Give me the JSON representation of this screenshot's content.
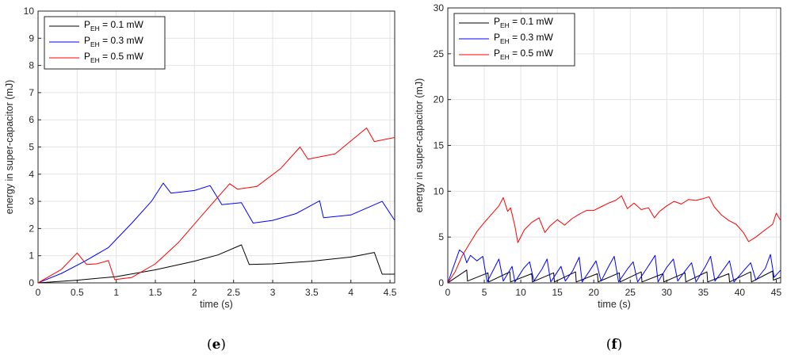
{
  "chart_data": [
    {
      "type": "line",
      "caption": "(e)",
      "xlabel": "time (s)",
      "ylabel": "energy in super-capacitor (mJ)",
      "xlim": [
        0,
        4.56
      ],
      "ylim": [
        0,
        10
      ],
      "xticks": [
        0,
        0.5,
        1,
        1.5,
        2,
        2.5,
        3,
        3.5,
        4,
        4.5
      ],
      "xtick_labels": [
        "0",
        "0.5",
        "1",
        "1.5",
        "2",
        "2.5",
        "3",
        "3.5",
        "4",
        "4.5"
      ],
      "yticks": [
        0,
        1,
        2,
        3,
        4,
        5,
        6,
        7,
        8,
        9,
        10
      ],
      "ytick_labels": [
        "0",
        "1",
        "2",
        "3",
        "4",
        "5",
        "6",
        "7",
        "8",
        "9",
        "10"
      ],
      "grid": true,
      "legend_position": "top-left",
      "series": [
        {
          "name_prefix": "P",
          "name_sub": "EH",
          "name_suffix": " = 0.1 mW",
          "color": "#000000",
          "points": [
            [
              0,
              0
            ],
            [
              0.5,
              0.1
            ],
            [
              1,
              0.23
            ],
            [
              1.5,
              0.48
            ],
            [
              2,
              0.8
            ],
            [
              2.3,
              1.03
            ],
            [
              2.6,
              1.4
            ],
            [
              2.7,
              0.68
            ],
            [
              3,
              0.7
            ],
            [
              3.5,
              0.8
            ],
            [
              4,
              0.95
            ],
            [
              4.3,
              1.12
            ],
            [
              4.4,
              0.32
            ],
            [
              4.56,
              0.32
            ]
          ]
        },
        {
          "name_prefix": "P",
          "name_sub": "EH",
          "name_suffix": " = 0.3 mW",
          "color": "#0000ff",
          "points": [
            [
              0,
              0
            ],
            [
              0.3,
              0.35
            ],
            [
              0.6,
              0.8
            ],
            [
              0.9,
              1.3
            ],
            [
              1.2,
              2.2
            ],
            [
              1.45,
              3.0
            ],
            [
              1.6,
              3.67
            ],
            [
              1.7,
              3.3
            ],
            [
              2,
              3.4
            ],
            [
              2.2,
              3.58
            ],
            [
              2.35,
              2.88
            ],
            [
              2.6,
              2.95
            ],
            [
              2.75,
              2.2
            ],
            [
              3,
              2.3
            ],
            [
              3.3,
              2.55
            ],
            [
              3.6,
              3.02
            ],
            [
              3.65,
              2.4
            ],
            [
              4,
              2.5
            ],
            [
              4.4,
              3.0
            ],
            [
              4.56,
              2.3
            ]
          ]
        },
        {
          "name_prefix": "P",
          "name_sub": "EH",
          "name_suffix": " = 0.5 mW",
          "color": "#ff0000",
          "points": [
            [
              0,
              0
            ],
            [
              0.3,
              0.5
            ],
            [
              0.5,
              1.1
            ],
            [
              0.62,
              0.68
            ],
            [
              0.75,
              0.7
            ],
            [
              0.9,
              0.82
            ],
            [
              0.98,
              0.12
            ],
            [
              1.2,
              0.2
            ],
            [
              1.5,
              0.7
            ],
            [
              1.8,
              1.5
            ],
            [
              2.1,
              2.5
            ],
            [
              2.45,
              3.65
            ],
            [
              2.55,
              3.45
            ],
            [
              2.8,
              3.55
            ],
            [
              3.1,
              4.2
            ],
            [
              3.35,
              5.0
            ],
            [
              3.45,
              4.55
            ],
            [
              3.8,
              4.75
            ],
            [
              4.2,
              5.7
            ],
            [
              4.3,
              5.2
            ],
            [
              4.56,
              5.35
            ]
          ]
        }
      ]
    },
    {
      "type": "line",
      "caption": "(f)",
      "xlabel": "time (s)",
      "ylabel": "energy in super-capacitor (mJ)",
      "xlim": [
        0,
        45.6
      ],
      "ylim": [
        0,
        30
      ],
      "xticks": [
        0,
        5,
        10,
        15,
        20,
        25,
        30,
        35,
        40,
        45
      ],
      "xtick_labels": [
        "0",
        "5",
        "10",
        "15",
        "20",
        "25",
        "30",
        "35",
        "40",
        "45"
      ],
      "yticks": [
        0,
        5,
        10,
        15,
        20,
        25,
        30
      ],
      "ytick_labels": [
        "0",
        "5",
        "10",
        "15",
        "20",
        "25",
        "30"
      ],
      "grid": true,
      "legend_position": "top-left",
      "series": [
        {
          "name_prefix": "P",
          "name_sub": "EH",
          "name_suffix": " = 0.1 mW",
          "color": "#000000",
          "points": [
            [
              0,
              0
            ],
            [
              2.6,
              1.4
            ],
            [
              2.7,
              0.2
            ],
            [
              5.5,
              1.1
            ],
            [
              5.6,
              0.1
            ],
            [
              8.5,
              1.2
            ],
            [
              8.6,
              0.1
            ],
            [
              11.5,
              1.0
            ],
            [
              11.6,
              0.1
            ],
            [
              14.5,
              1.1
            ],
            [
              14.6,
              0.1
            ],
            [
              17.5,
              1.2
            ],
            [
              17.6,
              0.1
            ],
            [
              20.5,
              1.0
            ],
            [
              20.6,
              0.1
            ],
            [
              23.5,
              1.1
            ],
            [
              23.6,
              0.1
            ],
            [
              26.5,
              1.2
            ],
            [
              26.6,
              0.1
            ],
            [
              29.5,
              1.0
            ],
            [
              29.6,
              0.1
            ],
            [
              32.5,
              1.1
            ],
            [
              32.6,
              0.1
            ],
            [
              35.5,
              1.2
            ],
            [
              35.6,
              0.1
            ],
            [
              38.5,
              1.0
            ],
            [
              38.6,
              0.1
            ],
            [
              41.5,
              1.2
            ],
            [
              41.6,
              0.1
            ],
            [
              44.5,
              1.3
            ],
            [
              44.6,
              0.3
            ],
            [
              45.6,
              0.6
            ]
          ]
        },
        {
          "name_prefix": "P",
          "name_sub": "EH",
          "name_suffix": " = 0.3 mW",
          "color": "#0000ff",
          "points": [
            [
              0,
              0
            ],
            [
              1.6,
              3.6
            ],
            [
              2.2,
              3.2
            ],
            [
              2.6,
              2.2
            ],
            [
              3.1,
              3.0
            ],
            [
              4.0,
              2.4
            ],
            [
              4.8,
              2.9
            ],
            [
              5.4,
              0.1
            ],
            [
              6.3,
              1.5
            ],
            [
              7.0,
              2.6
            ],
            [
              7.6,
              0.2
            ],
            [
              8.8,
              1.8
            ],
            [
              9.2,
              0.1
            ],
            [
              10.4,
              1.6
            ],
            [
              11.2,
              2.3
            ],
            [
              11.8,
              0.2
            ],
            [
              12.9,
              1.5
            ],
            [
              13.6,
              2.6
            ],
            [
              14.1,
              0.1
            ],
            [
              15.5,
              1.8
            ],
            [
              16.1,
              0.2
            ],
            [
              17.1,
              1.3
            ],
            [
              18.0,
              2.8
            ],
            [
              18.4,
              0.1
            ],
            [
              19.5,
              1.4
            ],
            [
              20.3,
              2.4
            ],
            [
              21.0,
              0.2
            ],
            [
              22.1,
              1.9
            ],
            [
              22.8,
              2.9
            ],
            [
              23.4,
              0.1
            ],
            [
              24.6,
              1.5
            ],
            [
              25.4,
              2.3
            ],
            [
              26.0,
              0.1
            ],
            [
              27.2,
              1.5
            ],
            [
              28.4,
              3.0
            ],
            [
              28.8,
              0.1
            ],
            [
              30.0,
              1.7
            ],
            [
              30.9,
              2.6
            ],
            [
              31.5,
              0.2
            ],
            [
              32.6,
              1.4
            ],
            [
              33.4,
              2.2
            ],
            [
              34.0,
              0.1
            ],
            [
              35.3,
              1.8
            ],
            [
              36.0,
              2.9
            ],
            [
              36.6,
              0.2
            ],
            [
              37.8,
              1.5
            ],
            [
              38.6,
              2.4
            ],
            [
              39.2,
              0.1
            ],
            [
              40.4,
              1.2
            ],
            [
              41.5,
              2.2
            ],
            [
              42.2,
              0.3
            ],
            [
              43.5,
              1.6
            ],
            [
              44.2,
              3.1
            ],
            [
              44.7,
              0.6
            ],
            [
              45.6,
              1.4
            ]
          ]
        },
        {
          "name_prefix": "P",
          "name_sub": "EH",
          "name_suffix": " = 0.5 mW",
          "color": "#ff0000",
          "points": [
            [
              0,
              0
            ],
            [
              1.0,
              1.2
            ],
            [
              2.0,
              3.0
            ],
            [
              3.0,
              4.3
            ],
            [
              4.0,
              5.6
            ],
            [
              5.0,
              6.6
            ],
            [
              6.0,
              7.5
            ],
            [
              7.0,
              8.4
            ],
            [
              7.6,
              9.3
            ],
            [
              8.2,
              7.8
            ],
            [
              8.6,
              8.2
            ],
            [
              9.2,
              6.2
            ],
            [
              9.6,
              4.4
            ],
            [
              10.5,
              5.8
            ],
            [
              11.5,
              6.6
            ],
            [
              12.5,
              7.1
            ],
            [
              13.3,
              5.5
            ],
            [
              14.0,
              6.2
            ],
            [
              15.0,
              6.9
            ],
            [
              16.0,
              6.3
            ],
            [
              17.0,
              7.0
            ],
            [
              18.0,
              7.5
            ],
            [
              19.0,
              7.9
            ],
            [
              20.0,
              7.9
            ],
            [
              21.0,
              8.3
            ],
            [
              22.0,
              8.7
            ],
            [
              23.0,
              9.0
            ],
            [
              23.8,
              9.5
            ],
            [
              24.6,
              8.1
            ],
            [
              25.5,
              8.7
            ],
            [
              26.5,
              8.0
            ],
            [
              27.5,
              8.2
            ],
            [
              28.3,
              7.1
            ],
            [
              29.0,
              7.8
            ],
            [
              30.0,
              8.4
            ],
            [
              31.0,
              8.9
            ],
            [
              32.0,
              8.6
            ],
            [
              33.0,
              9.1
            ],
            [
              34.0,
              9.0
            ],
            [
              35.0,
              9.2
            ],
            [
              35.8,
              9.4
            ],
            [
              36.5,
              8.3
            ],
            [
              37.5,
              7.4
            ],
            [
              38.5,
              6.8
            ],
            [
              39.5,
              6.4
            ],
            [
              40.5,
              5.5
            ],
            [
              41.2,
              4.5
            ],
            [
              42.2,
              5.0
            ],
            [
              43.5,
              5.8
            ],
            [
              44.5,
              6.4
            ],
            [
              45.0,
              7.6
            ],
            [
              45.6,
              6.8
            ]
          ]
        }
      ]
    }
  ]
}
